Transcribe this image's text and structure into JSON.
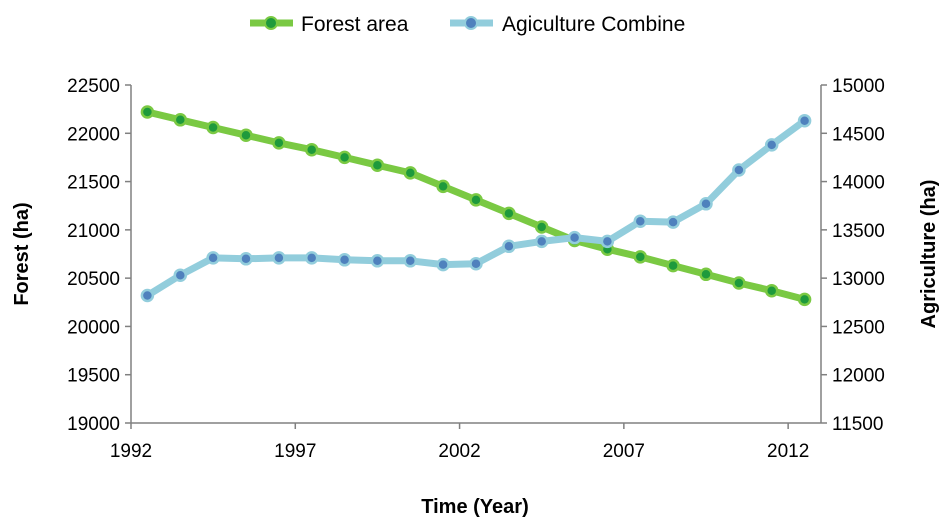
{
  "chart_data": {
    "type": "line",
    "xlabel": "Time (Year)",
    "ylabel_left": "Forest (ha)",
    "ylabel_right": "Agriculture (ha)",
    "x": [
      1992,
      1993,
      1994,
      1995,
      1996,
      1997,
      1998,
      1999,
      2000,
      2001,
      2002,
      2003,
      2004,
      2005,
      2006,
      2007,
      2008,
      2009,
      2010,
      2011,
      2012
    ],
    "x_ticks": [
      "1992",
      "1997",
      "2002",
      "2007",
      "2012"
    ],
    "x_range": [
      1992,
      2013
    ],
    "y_left_range": [
      19000,
      22500
    ],
    "y_left_ticks": [
      "19000",
      "19500",
      "20000",
      "20500",
      "21000",
      "21500",
      "22000",
      "22500"
    ],
    "y_right_range": [
      11500,
      15000
    ],
    "y_right_ticks": [
      "11500",
      "12000",
      "12500",
      "13000",
      "13500",
      "14000",
      "14500",
      "15000"
    ],
    "legend_position": "top",
    "grid": false,
    "series": [
      {
        "name": "Forest area",
        "axis": "left",
        "color": "#7ac943",
        "marker_color": "#1e9a3c",
        "values": [
          22220,
          22140,
          22060,
          21980,
          21900,
          21830,
          21750,
          21670,
          21590,
          21450,
          21310,
          21170,
          21030,
          20890,
          20800,
          20720,
          20630,
          20540,
          20450,
          20370,
          20280
        ]
      },
      {
        "name": "Agiculture Combine",
        "axis": "right",
        "color": "#92cddc",
        "marker_color": "#4f81bd",
        "values": [
          12820,
          13030,
          13210,
          13200,
          13210,
          13210,
          13190,
          13180,
          13180,
          13140,
          13150,
          13330,
          13380,
          13420,
          13380,
          13590,
          13580,
          13770,
          14120,
          14380,
          14630
        ]
      }
    ]
  }
}
